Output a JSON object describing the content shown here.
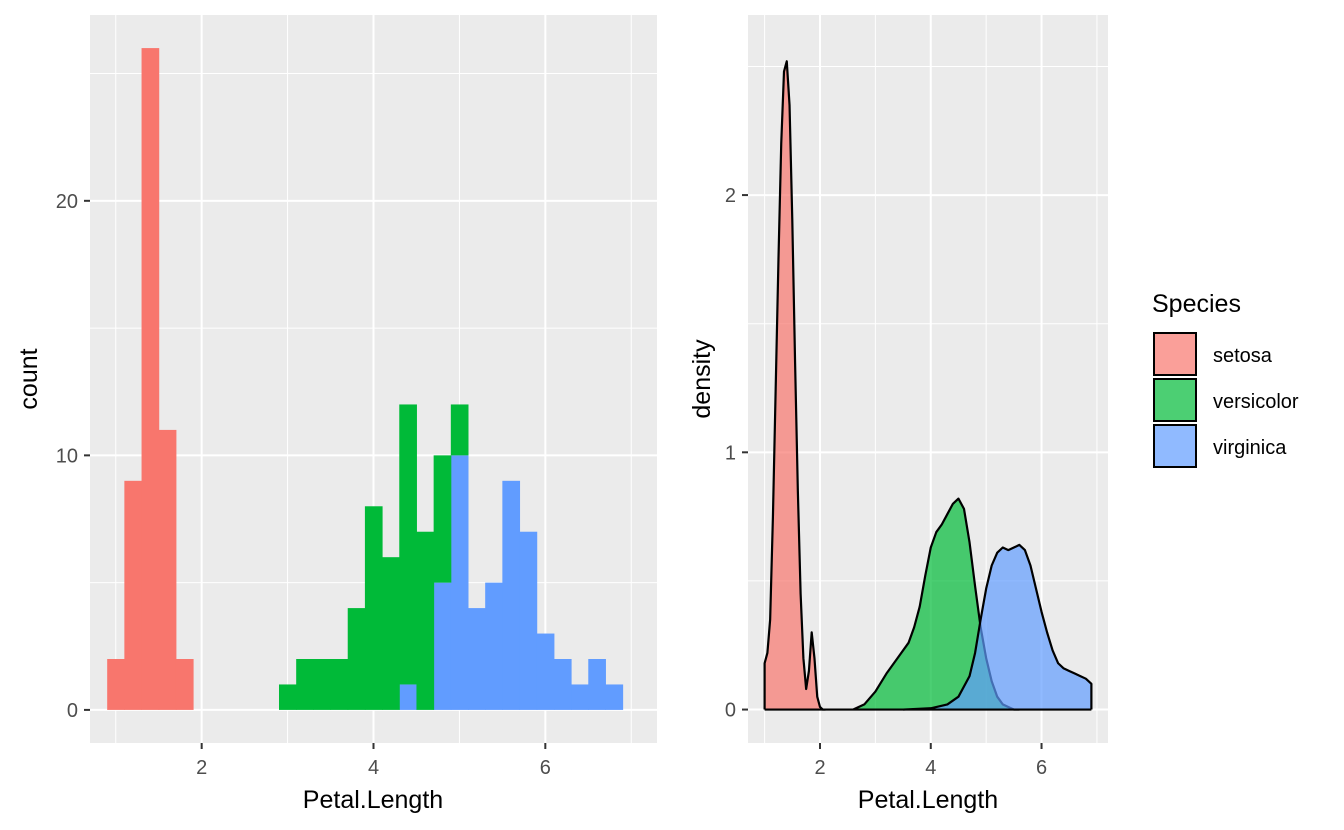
{
  "chart_data": [
    {
      "type": "bar",
      "subtype": "stacked-histogram",
      "xlabel": "Petal.Length",
      "ylabel": "count",
      "xlim": [
        0.7,
        7.3
      ],
      "ylim": [
        -1.3,
        27.3
      ],
      "x_ticks": [
        2,
        4,
        6
      ],
      "y_ticks": [
        0,
        10,
        20
      ],
      "grid": true,
      "bin_width": 0.2,
      "stack_order": [
        "virginica",
        "versicolor",
        "setosa"
      ],
      "series": [
        {
          "name": "setosa",
          "color": "#F8766D",
          "bins": [
            {
              "x0": 0.9,
              "x1": 1.1,
              "count": 2
            },
            {
              "x0": 1.1,
              "x1": 1.3,
              "count": 9
            },
            {
              "x0": 1.3,
              "x1": 1.5,
              "count": 26
            },
            {
              "x0": 1.5,
              "x1": 1.7,
              "count": 11
            },
            {
              "x0": 1.7,
              "x1": 1.9,
              "count": 2
            }
          ]
        },
        {
          "name": "versicolor",
          "color": "#00BA38",
          "bins": [
            {
              "x0": 2.9,
              "x1": 3.1,
              "count": 1
            },
            {
              "x0": 3.1,
              "x1": 3.3,
              "count": 2
            },
            {
              "x0": 3.3,
              "x1": 3.5,
              "count": 2
            },
            {
              "x0": 3.5,
              "x1": 3.7,
              "count": 2
            },
            {
              "x0": 3.7,
              "x1": 3.9,
              "count": 4
            },
            {
              "x0": 3.9,
              "x1": 4.1,
              "count": 8
            },
            {
              "x0": 4.1,
              "x1": 4.3,
              "count": 6
            },
            {
              "x0": 4.3,
              "x1": 4.5,
              "count": 11
            },
            {
              "x0": 4.5,
              "x1": 4.7,
              "count": 7
            },
            {
              "x0": 4.7,
              "x1": 4.9,
              "count": 5
            },
            {
              "x0": 4.9,
              "x1": 5.1,
              "count": 2
            }
          ]
        },
        {
          "name": "virginica",
          "color": "#619CFF",
          "bins": [
            {
              "x0": 4.3,
              "x1": 4.5,
              "count": 1
            },
            {
              "x0": 4.7,
              "x1": 4.9,
              "count": 5
            },
            {
              "x0": 4.9,
              "x1": 5.1,
              "count": 10
            },
            {
              "x0": 5.1,
              "x1": 5.3,
              "count": 4
            },
            {
              "x0": 5.3,
              "x1": 5.5,
              "count": 5
            },
            {
              "x0": 5.5,
              "x1": 5.7,
              "count": 9
            },
            {
              "x0": 5.7,
              "x1": 5.9,
              "count": 7
            },
            {
              "x0": 5.9,
              "x1": 6.1,
              "count": 3
            },
            {
              "x0": 6.1,
              "x1": 6.3,
              "count": 2
            },
            {
              "x0": 6.3,
              "x1": 6.5,
              "count": 1
            },
            {
              "x0": 6.5,
              "x1": 6.7,
              "count": 2
            },
            {
              "x0": 6.7,
              "x1": 6.9,
              "count": 1
            }
          ]
        }
      ]
    },
    {
      "type": "area",
      "subtype": "density",
      "xlabel": "Petal.Length",
      "ylabel": "density",
      "xlim": [
        0.7,
        7.2
      ],
      "ylim": [
        -0.13,
        2.7
      ],
      "x_ticks": [
        2,
        4,
        6
      ],
      "y_ticks": [
        0,
        1,
        2
      ],
      "grid": true,
      "fill_opacity": 0.7,
      "series": [
        {
          "name": "setosa",
          "color": "#F8766D",
          "x": [
            1.0,
            1.05,
            1.1,
            1.15,
            1.2,
            1.25,
            1.3,
            1.35,
            1.4,
            1.45,
            1.5,
            1.55,
            1.6,
            1.65,
            1.7,
            1.75,
            1.8,
            1.85,
            1.9,
            1.95,
            2.0,
            2.05,
            2.1
          ],
          "y": [
            0.18,
            0.22,
            0.35,
            0.75,
            1.25,
            1.75,
            2.2,
            2.48,
            2.52,
            2.35,
            1.9,
            1.35,
            0.85,
            0.45,
            0.2,
            0.08,
            0.15,
            0.3,
            0.2,
            0.05,
            0.01,
            0.0,
            0.0
          ]
        },
        {
          "name": "versicolor",
          "color": "#00BA38",
          "x": [
            2.6,
            2.8,
            3.0,
            3.2,
            3.4,
            3.6,
            3.7,
            3.8,
            3.9,
            4.0,
            4.1,
            4.2,
            4.3,
            4.4,
            4.5,
            4.6,
            4.7,
            4.8,
            4.9,
            5.0,
            5.1,
            5.2,
            5.3,
            5.4,
            5.5,
            5.6
          ],
          "y": [
            0.0,
            0.02,
            0.07,
            0.14,
            0.2,
            0.26,
            0.32,
            0.4,
            0.52,
            0.63,
            0.69,
            0.72,
            0.76,
            0.8,
            0.82,
            0.78,
            0.65,
            0.48,
            0.32,
            0.2,
            0.11,
            0.05,
            0.02,
            0.01,
            0.0,
            0.0
          ]
        },
        {
          "name": "virginica",
          "color": "#619CFF",
          "x": [
            3.5,
            4.0,
            4.3,
            4.5,
            4.7,
            4.8,
            4.9,
            5.0,
            5.1,
            5.2,
            5.3,
            5.4,
            5.5,
            5.6,
            5.7,
            5.8,
            5.9,
            6.0,
            6.1,
            6.2,
            6.3,
            6.4,
            6.5,
            6.6,
            6.7,
            6.8,
            6.9
          ],
          "y": [
            0.0,
            0.005,
            0.02,
            0.05,
            0.13,
            0.22,
            0.35,
            0.47,
            0.56,
            0.61,
            0.63,
            0.62,
            0.63,
            0.64,
            0.62,
            0.56,
            0.47,
            0.38,
            0.3,
            0.23,
            0.18,
            0.16,
            0.15,
            0.14,
            0.13,
            0.12,
            0.1
          ]
        }
      ]
    }
  ],
  "legend": {
    "title": "Species",
    "placement": "right",
    "items": [
      {
        "label": "setosa",
        "color": "#F8766D"
      },
      {
        "label": "versicolor",
        "color": "#00BA38"
      },
      {
        "label": "virginica",
        "color": "#619CFF"
      }
    ]
  }
}
